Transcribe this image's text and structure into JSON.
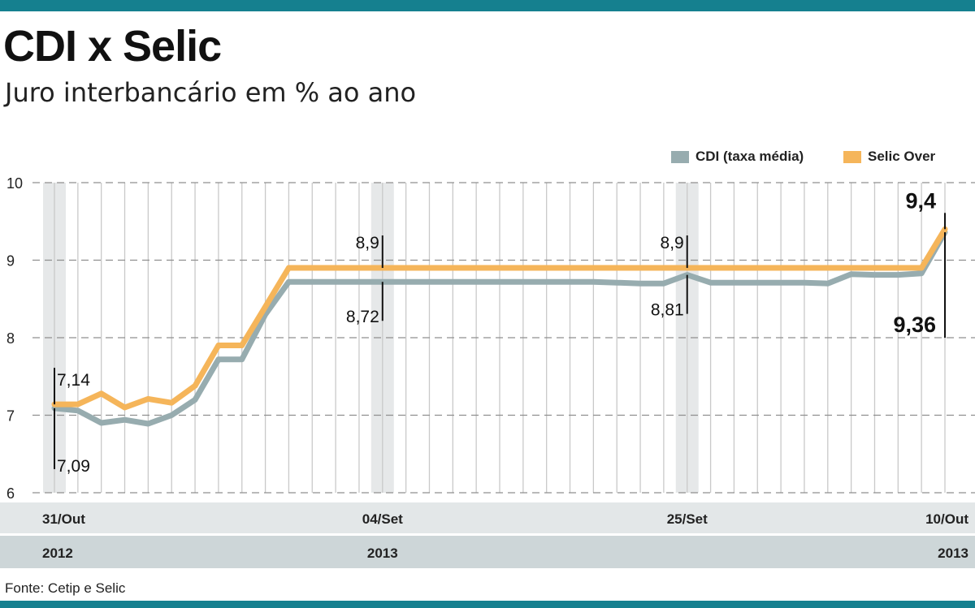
{
  "title": "CDI x Selic",
  "subtitle": "Juro interbancário em % ao ano",
  "source": "Fonte: Cetip e Selic",
  "colors": {
    "accent_bar": "#15808f",
    "cdi": "#97acaf",
    "selic": "#f5b55a",
    "band": "#e6e8e9",
    "axis_band": "#cdd6d8"
  },
  "chart_data": {
    "type": "line",
    "title": "CDI x Selic",
    "subtitle": "Juro interbancário em % ao ano",
    "ylim": [
      6,
      10
    ],
    "yticks": [
      "6",
      "7",
      "8",
      "9",
      "10"
    ],
    "grid": true,
    "legend_position": "top-right",
    "x_tick_labels": [
      {
        "index": 0,
        "label": "31/Out"
      },
      {
        "index": 14,
        "label": "04/Set"
      },
      {
        "index": 27,
        "label": "25/Set"
      },
      {
        "index": 38,
        "label": "10/Out"
      }
    ],
    "year_labels": [
      {
        "index": 0,
        "label": "2012"
      },
      {
        "index": 14,
        "label": "2013"
      },
      {
        "index": 38,
        "label": "2013"
      }
    ],
    "series": [
      {
        "name": "CDI (taxa média)",
        "values": [
          7.09,
          7.06,
          6.9,
          6.94,
          6.89,
          7.0,
          7.2,
          7.72,
          7.72,
          8.3,
          8.72,
          8.72,
          8.72,
          8.72,
          8.72,
          8.72,
          8.72,
          8.72,
          8.72,
          8.72,
          8.72,
          8.72,
          8.72,
          8.72,
          8.71,
          8.7,
          8.7,
          8.81,
          8.71,
          8.71,
          8.71,
          8.71,
          8.71,
          8.7,
          8.82,
          8.81,
          8.81,
          8.83,
          9.36
        ]
      },
      {
        "name": "Selic Over",
        "values": [
          7.14,
          7.14,
          7.28,
          7.1,
          7.21,
          7.16,
          7.38,
          7.9,
          7.9,
          8.4,
          8.9,
          8.9,
          8.9,
          8.9,
          8.9,
          8.9,
          8.9,
          8.9,
          8.9,
          8.9,
          8.9,
          8.9,
          8.9,
          8.9,
          8.9,
          8.9,
          8.9,
          8.9,
          8.9,
          8.9,
          8.9,
          8.9,
          8.9,
          8.9,
          8.9,
          8.9,
          8.9,
          8.9,
          9.4
        ]
      }
    ],
    "annotations": [
      {
        "index": 0,
        "text": "7,14",
        "series": "Selic Over"
      },
      {
        "index": 0,
        "text": "7,09",
        "series": "CDI (taxa média)"
      },
      {
        "index": 14,
        "text": "8,9",
        "series": "Selic Over"
      },
      {
        "index": 14,
        "text": "8,72",
        "series": "CDI (taxa média)"
      },
      {
        "index": 27,
        "text": "8,9",
        "series": "Selic Over"
      },
      {
        "index": 27,
        "text": "8,81",
        "series": "CDI (taxa média)"
      },
      {
        "index": 38,
        "text": "9,4",
        "series": "Selic Over"
      },
      {
        "index": 38,
        "text": "9,36",
        "series": "CDI (taxa média)"
      }
    ]
  }
}
